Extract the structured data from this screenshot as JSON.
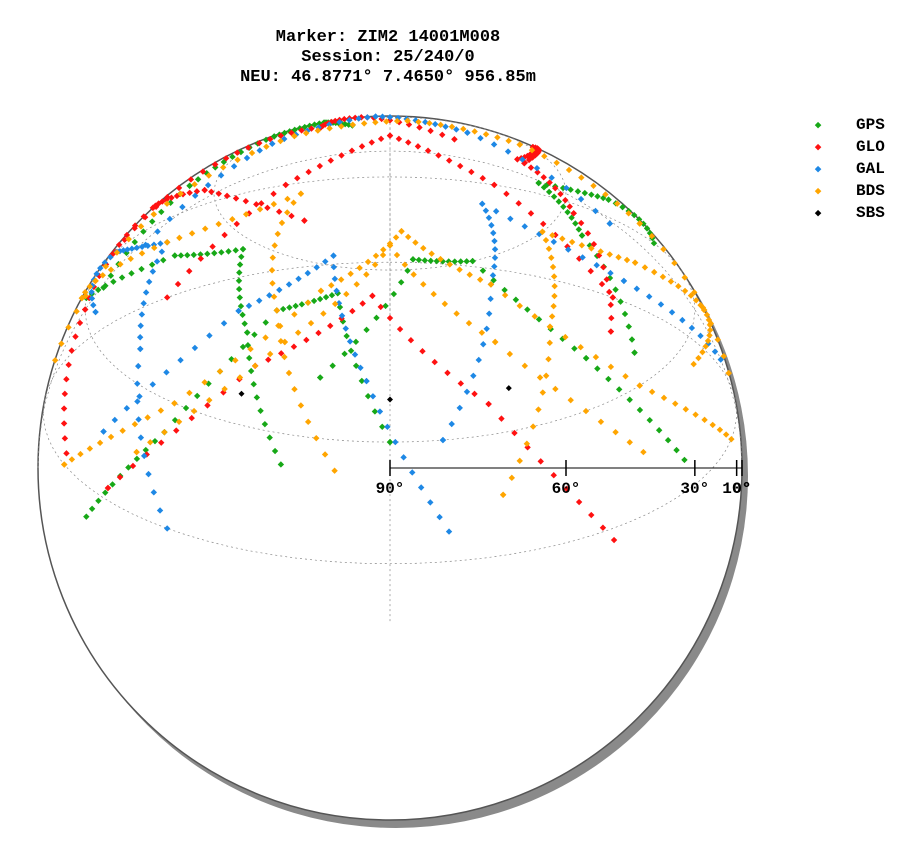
{
  "header": {
    "lines": [
      "Marker: ZIM2 14001M008",
      "Session: 25/240/0",
      "NEU: 46.8771° 7.4650° 956.85m"
    ]
  },
  "legend": {
    "items": [
      {
        "label": "GPS",
        "color": "#17a817"
      },
      {
        "label": "GLO",
        "color": "#ff1111"
      },
      {
        "label": "GAL",
        "color": "#1e88e5"
      },
      {
        "label": "BDS",
        "color": "#ffa500"
      },
      {
        "label": "SBS",
        "color": "#000000"
      }
    ]
  },
  "chart_data": {
    "type": "scatter",
    "projection": "polar-skyplot",
    "radial_axis": {
      "ticks": [
        90,
        60,
        30,
        10,
        0
      ],
      "tick_labels": [
        "90°",
        "60°",
        "30°",
        "10°",
        "0°"
      ],
      "range": [
        0,
        90
      ]
    },
    "grid": true,
    "legend_position": "top-right",
    "series": [
      {
        "name": "GPS",
        "color": "#17a817",
        "tracks": [
          {
            "az": [
              300,
              312,
              325,
              338,
              350
            ],
            "el": [
              20,
              40,
              55,
              60,
              52
            ]
          },
          {
            "az": [
              200,
              215,
              232,
              252,
              275
            ],
            "el": [
              25,
              45,
              58,
              50,
              30
            ]
          },
          {
            "az": [
              120,
              135,
              152,
              172,
              195
            ],
            "el": [
              15,
              38,
              60,
              62,
              40
            ]
          },
          {
            "az": [
              60,
              75,
              92,
              108,
              122
            ],
            "el": [
              30,
              50,
              65,
              55,
              35
            ]
          },
          {
            "az": [
              240,
              225,
              210,
              195,
              180
            ],
            "el": [
              5,
              25,
              50,
              55,
              30
            ]
          }
        ]
      },
      {
        "name": "GLO",
        "color": "#ff1111",
        "tracks": [
          {
            "az": [
              320,
              340,
              0,
              20,
              40
            ],
            "el": [
              10,
              30,
              45,
              30,
              10
            ]
          },
          {
            "az": [
              280,
              300,
              325,
              350,
              15
            ],
            "el": [
              35,
              55,
              70,
              62,
              45
            ]
          },
          {
            "az": [
              30,
              50,
              75,
              100,
              125
            ],
            "el": [
              40,
              58,
              68,
              58,
              40
            ]
          },
          {
            "az": [
              140,
              160,
              185,
              210,
              235
            ],
            "el": [
              8,
              35,
              55,
              40,
              12
            ]
          },
          {
            "az": [
              250,
              270,
              295,
              320,
              345
            ],
            "el": [
              12,
              30,
              42,
              35,
              20
            ]
          }
        ]
      },
      {
        "name": "GAL",
        "color": "#1e88e5",
        "tracks": [
          {
            "az": [
              310,
              330,
              355,
              20,
              45
            ],
            "el": [
              25,
              48,
              62,
              50,
              28
            ]
          },
          {
            "az": [
              170,
              185,
              200,
              220,
              240
            ],
            "el": [
              15,
              40,
              62,
              48,
              20
            ]
          },
          {
            "az": [
              90,
              110,
              130,
              150,
              170
            ],
            "el": [
              20,
              45,
              70,
              55,
              30
            ]
          },
          {
            "az": [
              220,
              240,
              260,
              280,
              300
            ],
            "el": [
              10,
              35,
              50,
              38,
              15
            ]
          }
        ]
      },
      {
        "name": "BDS",
        "color": "#ffa500",
        "tracks": [
          {
            "az": [
              100,
              125,
              150,
              175,
              200,
              225,
              250
            ],
            "el": [
              10,
              30,
              55,
              68,
              55,
              30,
              10
            ]
          },
          {
            "az": [
              130,
              155,
              180,
              205,
              230
            ],
            "el": [
              20,
              45,
              65,
              45,
              20
            ]
          },
          {
            "az": [
              280,
              305,
              335,
              5,
              35,
              60,
              85
            ],
            "el": [
              15,
              35,
              50,
              55,
              50,
              35,
              15
            ]
          },
          {
            "az": [
              60,
              80,
              100,
              120,
              140,
              160
            ],
            "el": [
              5,
              25,
              45,
              60,
              45,
              20
            ]
          },
          {
            "az": [
              190,
              210,
              235,
              260,
              285
            ],
            "el": [
              25,
              50,
              72,
              50,
              25
            ]
          }
        ]
      },
      {
        "name": "SBS",
        "color": "#000000",
        "points": [
          {
            "az": 211,
            "el": 35
          },
          {
            "az": 180,
            "el": 37
          },
          {
            "az": 155,
            "el": 37
          }
        ]
      }
    ]
  }
}
